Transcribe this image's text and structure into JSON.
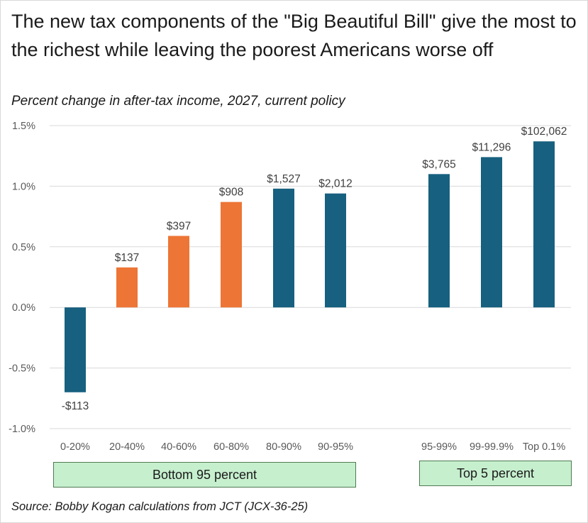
{
  "header": {
    "title": "The new tax components of the \"Big Beautiful Bill\" give the most to the richest while leaving the poorest Americans worse off",
    "subtitle": "Percent change in after-tax income, 2027, current policy",
    "source": "Source: Bobby Kogan calculations from JCT (JCX-36-25)"
  },
  "groups": {
    "bottom": "Bottom 95 percent",
    "top": "Top 5 percent"
  },
  "colors": {
    "blue": "#17607f",
    "orange": "#ed7536",
    "grid": "#d9d9d9"
  },
  "chart_data": {
    "type": "bar",
    "title": "The new tax components of the \"Big Beautiful Bill\" give the most to the richest while leaving the poorest Americans worse off",
    "subtitle": "Percent change in after-tax income, 2027, current policy",
    "xlabel": "",
    "ylabel": "",
    "ylim": [
      -1.0,
      1.5
    ],
    "yticks": [
      "1.5%",
      "1.0%",
      "0.5%",
      "0.0%",
      "-0.5%",
      "-1.0%"
    ],
    "ytick_values": [
      1.5,
      1.0,
      0.5,
      0.0,
      -0.5,
      -1.0
    ],
    "grid": true,
    "categories": [
      "0-20%",
      "20-40%",
      "40-60%",
      "60-80%",
      "80-90%",
      "90-95%",
      "95-99%",
      "99-99.9%",
      "Top 0.1%"
    ],
    "values": [
      -0.7,
      0.33,
      0.59,
      0.87,
      0.98,
      0.94,
      1.1,
      1.24,
      1.37
    ],
    "data_labels": [
      "-$113",
      "$137",
      "$397",
      "$908",
      "$1,527",
      "$2,012",
      "$3,765",
      "$11,296",
      "$102,062"
    ],
    "bar_colors": [
      "blue",
      "orange",
      "orange",
      "orange",
      "blue",
      "blue",
      "blue",
      "blue",
      "blue"
    ]
  }
}
